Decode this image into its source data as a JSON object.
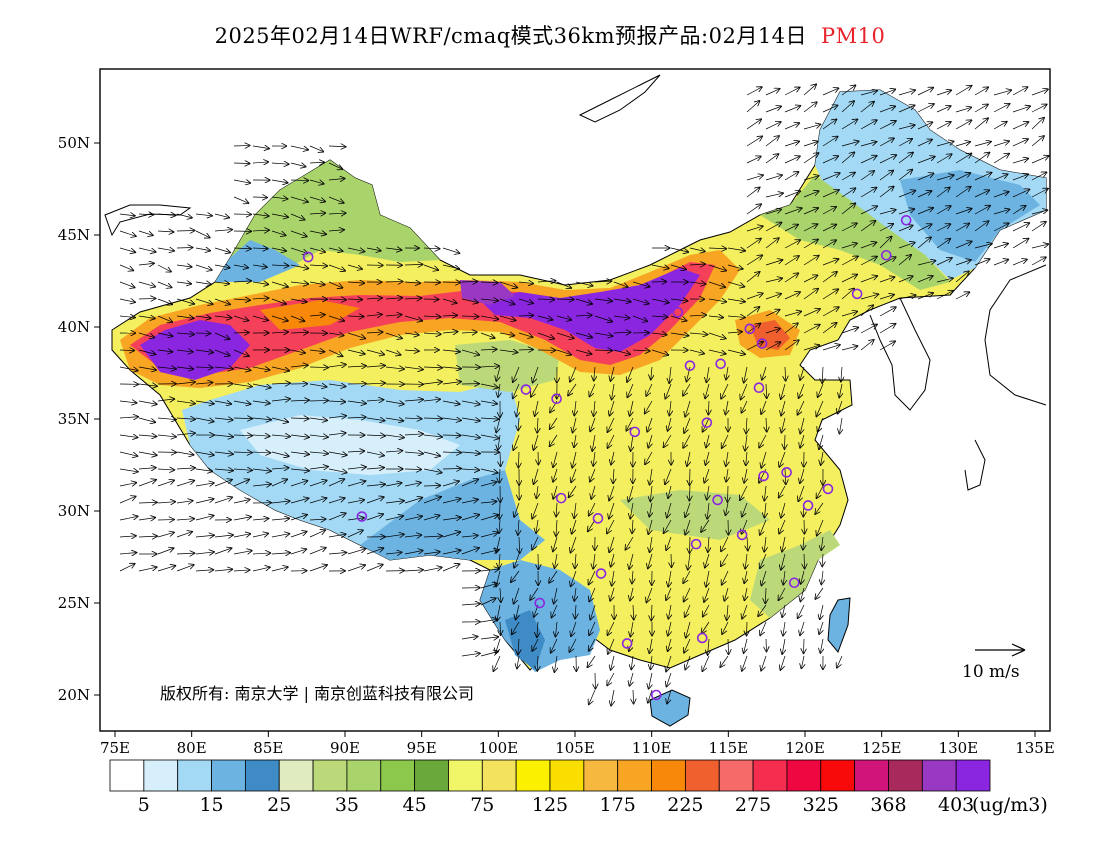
{
  "title": {
    "text": "2025年02月14日WRF/cmaq模式36km预报产品:02月14日",
    "variable": "PM10"
  },
  "axes": {
    "lon_labels": [
      "75E",
      "80E",
      "85E",
      "90E",
      "95E",
      "100E",
      "105E",
      "110E",
      "115E",
      "120E",
      "125E",
      "130E",
      "135E"
    ],
    "lat_labels": [
      "20N",
      "25N",
      "30N",
      "35N",
      "40N",
      "45N",
      "50N"
    ]
  },
  "colorbar": {
    "colors": [
      "#ffffff",
      "#d6effb",
      "#a3d9f4",
      "#6cb3e2",
      "#3f8bc6",
      "#e0ebc0",
      "#bcd97a",
      "#a9d36b",
      "#8cc84b",
      "#6aa83b",
      "#f1f568",
      "#f3e25d",
      "#fbf000",
      "#f9de00",
      "#f7b840",
      "#f7a522",
      "#f7880a",
      "#f0602e",
      "#f76a6a",
      "#f52e50",
      "#ee0740",
      "#f90a0a",
      "#d11479",
      "#a82a5c",
      "#9938c2",
      "#8a26e0"
    ],
    "labels": [
      "5",
      "15",
      "25",
      "35",
      "45",
      "75",
      "125",
      "175",
      "225",
      "275",
      "325",
      "368",
      "403"
    ],
    "unit": "(ug/m3)"
  },
  "copyright": "版权所有: 南京大学 | 南京创蓝科技有限公司",
  "wind_scale": {
    "label": "10 m/s"
  },
  "stations": [
    [
      87.6,
      43.8
    ],
    [
      91.1,
      29.7
    ],
    [
      101.8,
      36.6
    ],
    [
      103.8,
      36.1
    ],
    [
      104.1,
      30.7
    ],
    [
      106.5,
      29.6
    ],
    [
      106.7,
      26.6
    ],
    [
      102.7,
      25.0
    ],
    [
      108.4,
      22.8
    ],
    [
      110.3,
      20.0
    ],
    [
      113.3,
      23.1
    ],
    [
      112.9,
      28.2
    ],
    [
      115.9,
      28.7
    ],
    [
      114.3,
      30.6
    ],
    [
      117.3,
      31.9
    ],
    [
      118.8,
      32.1
    ],
    [
      120.2,
      30.3
    ],
    [
      121.5,
      31.2
    ],
    [
      119.3,
      26.1
    ],
    [
      113.6,
      34.8
    ],
    [
      108.9,
      34.3
    ],
    [
      112.5,
      37.9
    ],
    [
      114.5,
      38.0
    ],
    [
      116.4,
      39.9
    ],
    [
      117.2,
      39.1
    ],
    [
      117.0,
      36.7
    ],
    [
      111.7,
      40.8
    ],
    [
      123.4,
      41.8
    ],
    [
      125.3,
      43.9
    ],
    [
      126.6,
      45.8
    ]
  ]
}
